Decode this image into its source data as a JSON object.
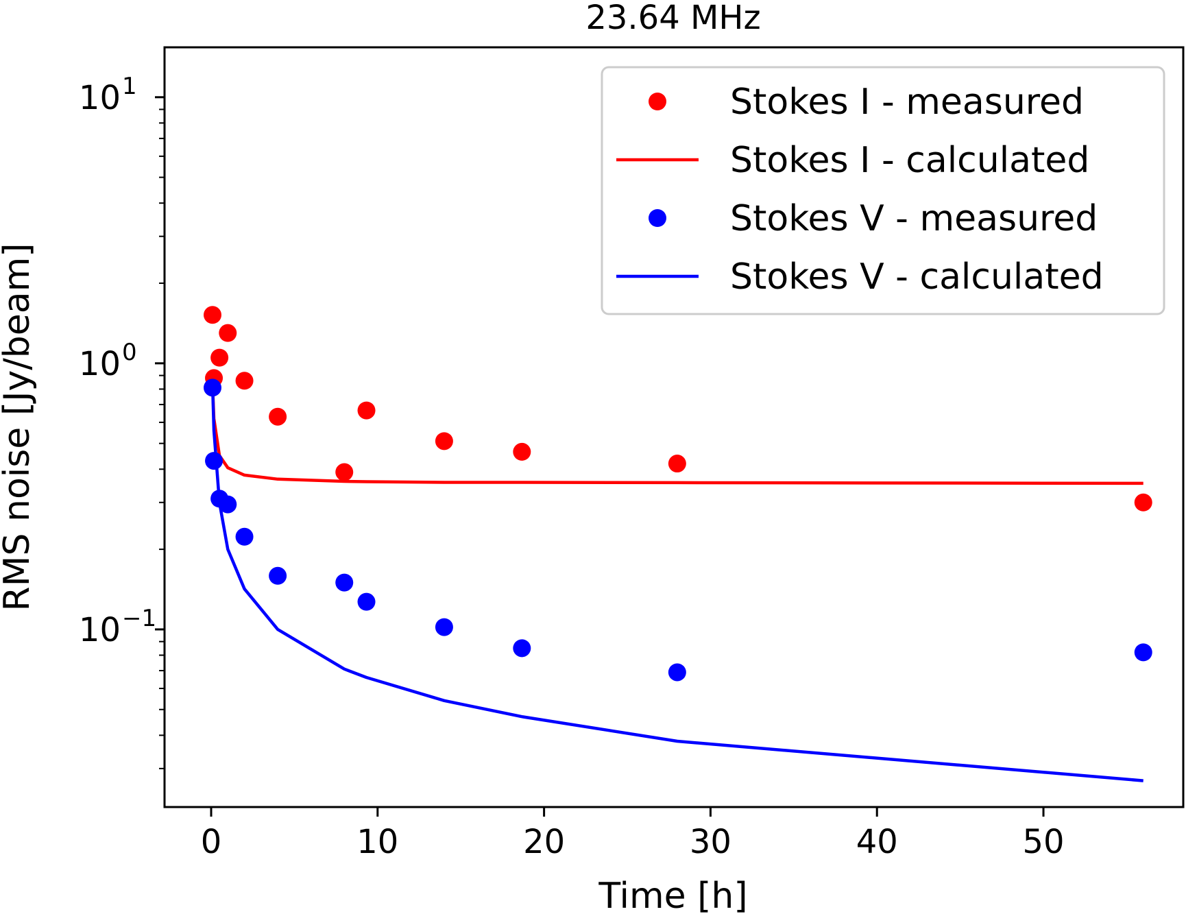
{
  "chart_data": {
    "type": "scatter",
    "title": "23.64 MHz",
    "xlabel": "Time [h]",
    "ylabel": "RMS noise [Jy/beam]",
    "xlim": [
      -2.8,
      58.4
    ],
    "ylim": [
      0.0215,
      15.4
    ],
    "yscale": "log",
    "xticks": [
      0,
      10,
      20,
      30,
      40,
      50
    ],
    "yticks": [
      {
        "value": 10,
        "base": "10",
        "exp": "1"
      },
      {
        "value": 1,
        "base": "10",
        "exp": "0"
      },
      {
        "value": 0.1,
        "base": "10",
        "exp": "−1"
      }
    ],
    "grid": false,
    "legend_position": "top-right",
    "series": [
      {
        "name": "Stokes I - measured",
        "kind": "scatter",
        "color": "#ff0000",
        "x": [
          0.083,
          0.167,
          0.5,
          1,
          2,
          4,
          8,
          9.33,
          14,
          18.67,
          28,
          56
        ],
        "y": [
          1.52,
          0.88,
          1.05,
          1.3,
          0.86,
          0.63,
          0.39,
          0.665,
          0.51,
          0.465,
          0.42,
          0.3
        ]
      },
      {
        "name": "Stokes I - calculated",
        "kind": "line",
        "color": "#ff0000",
        "x": [
          0.083,
          0.167,
          0.5,
          1,
          2,
          4,
          8,
          9.33,
          14,
          18.67,
          28,
          56
        ],
        "y": [
          0.84,
          0.62,
          0.45,
          0.405,
          0.38,
          0.367,
          0.36,
          0.359,
          0.357,
          0.357,
          0.356,
          0.354
        ]
      },
      {
        "name": "Stokes V - measured",
        "kind": "scatter",
        "color": "#0000ff",
        "x": [
          0.083,
          0.167,
          0.5,
          1,
          2,
          4,
          8,
          9.33,
          14,
          18.67,
          28,
          56
        ],
        "y": [
          0.81,
          0.43,
          0.31,
          0.295,
          0.223,
          0.159,
          0.15,
          0.127,
          0.102,
          0.085,
          0.069,
          0.082
        ]
      },
      {
        "name": "Stokes V - calculated",
        "kind": "line",
        "color": "#0000ff",
        "x": [
          0.083,
          0.167,
          0.5,
          1,
          2,
          4,
          8,
          9.33,
          14,
          18.67,
          28,
          56
        ],
        "y": [
          0.84,
          0.56,
          0.3,
          0.2,
          0.142,
          0.1,
          0.071,
          0.066,
          0.054,
          0.047,
          0.038,
          0.027
        ]
      }
    ]
  }
}
